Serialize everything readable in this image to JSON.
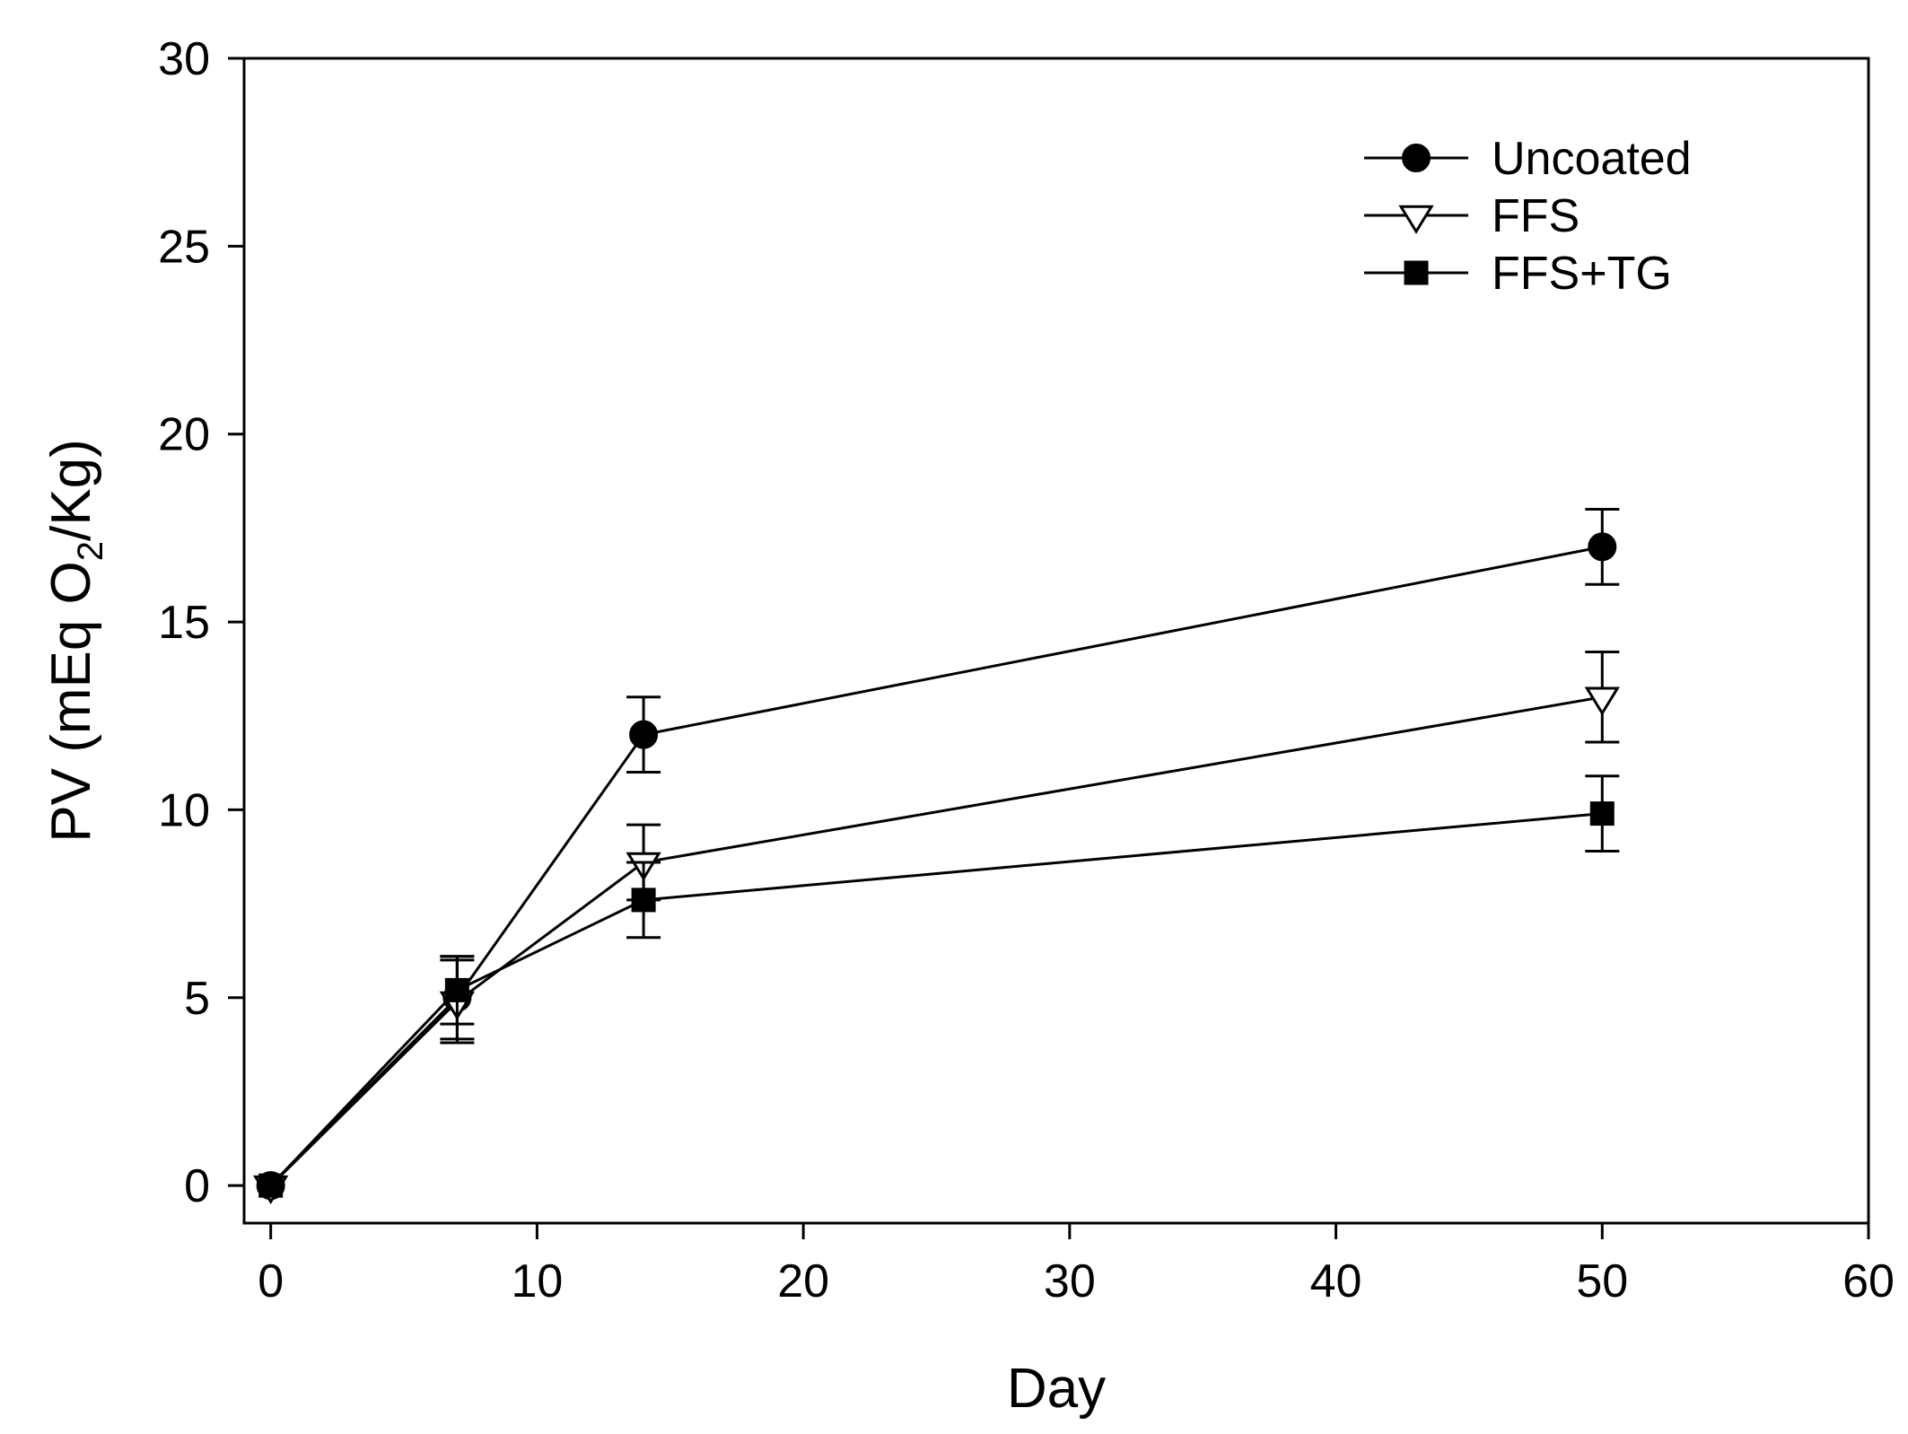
{
  "chart_data": {
    "type": "line",
    "title": "",
    "xlabel": "Day",
    "ylabel": "PV (mEq O",
    "ylabel_sub": "2",
    "ylabel_tail": "/Kg)",
    "xlim": [
      -1,
      60
    ],
    "ylim": [
      -1,
      30
    ],
    "x_ticks": [
      0,
      10,
      20,
      30,
      40,
      50,
      60
    ],
    "x_tick_labels": [
      "0",
      "10",
      "20",
      "30",
      "40",
      "50",
      "60"
    ],
    "y_ticks": [
      0,
      5,
      10,
      15,
      20,
      25,
      30
    ],
    "y_tick_labels": [
      "0",
      "5",
      "10",
      "15",
      "20",
      "25",
      "30"
    ],
    "grid": false,
    "legend_position": "top-right",
    "series": [
      {
        "name": "Uncoated",
        "marker": "circle",
        "x": [
          0,
          7,
          14,
          50
        ],
        "y": [
          0,
          5.0,
          12.0,
          17.0
        ],
        "err": [
          0,
          1.1,
          1.0,
          1.0
        ]
      },
      {
        "name": "FFS",
        "marker": "triangle-down-open",
        "x": [
          0,
          7,
          14,
          50
        ],
        "y": [
          0,
          4.9,
          8.6,
          13.0
        ],
        "err": [
          0,
          1.1,
          1.0,
          1.2
        ]
      },
      {
        "name": "FFS+TG",
        "marker": "square",
        "x": [
          0,
          7,
          14,
          50
        ],
        "y": [
          0,
          5.2,
          7.6,
          9.9
        ],
        "err": [
          0,
          0.9,
          1.0,
          1.0
        ]
      }
    ]
  }
}
